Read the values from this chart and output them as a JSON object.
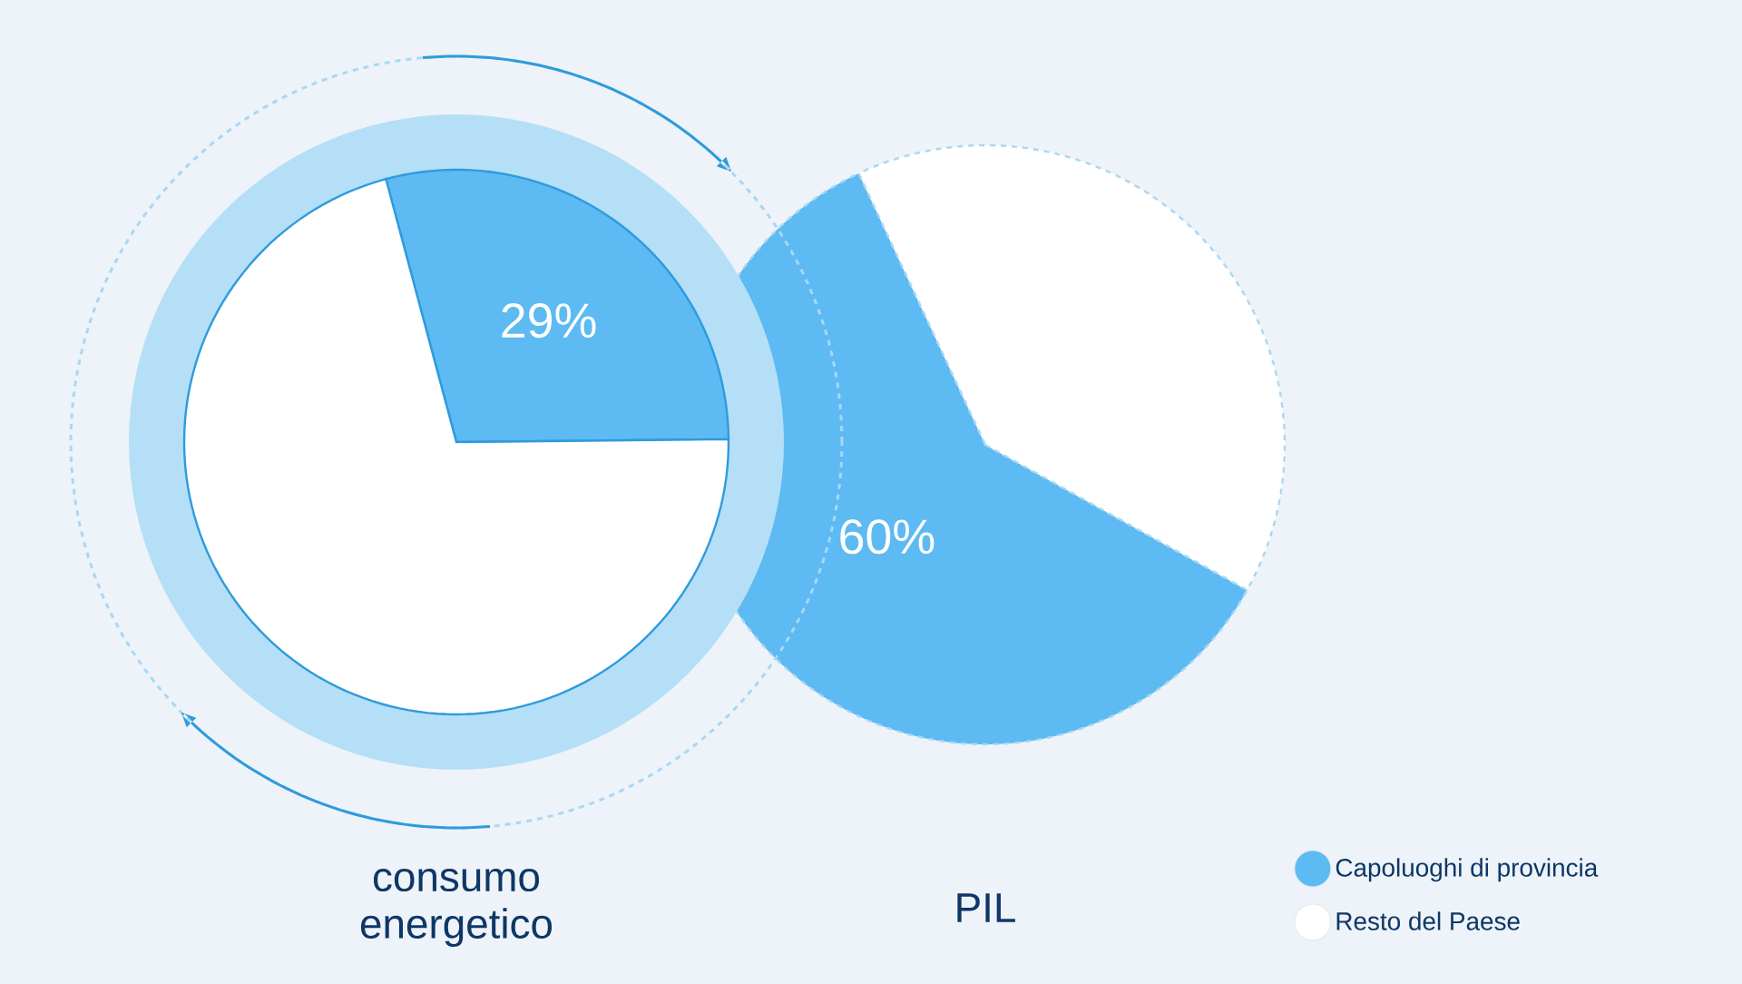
{
  "chart_data": [
    {
      "type": "pie",
      "title": "consumo energetico",
      "categories": [
        "Capoluoghi di provincia",
        "Resto del Paese"
      ],
      "values": [
        29,
        71
      ],
      "colors": [
        "#5dbaf2",
        "#ffffff"
      ],
      "value_labels": [
        "29%",
        null
      ],
      "legend": "bottom right"
    },
    {
      "type": "pie",
      "title": "PIL",
      "categories": [
        null,
        null
      ],
      "values": [
        60,
        40
      ],
      "colors": [
        "#5dbaf2",
        "#ffffff"
      ],
      "value_labels": [
        "60%",
        null
      ]
    }
  ]
}
